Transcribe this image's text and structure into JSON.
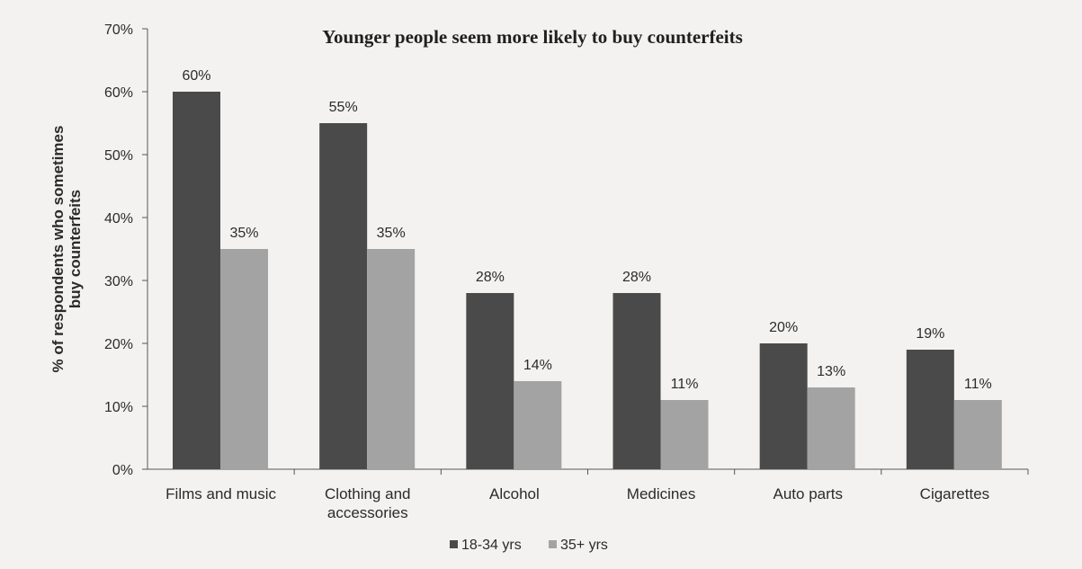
{
  "chart_data": {
    "type": "bar",
    "title": "Younger people seem more likely to buy counterfeits",
    "ylabel_lines": [
      "% of respondents who sometimes",
      "buy counterfeits"
    ],
    "xlabel": "",
    "ylim": [
      0,
      70
    ],
    "yticks": [
      0,
      10,
      20,
      30,
      40,
      50,
      60,
      70
    ],
    "ytick_labels": [
      "0%",
      "10%",
      "20%",
      "30%",
      "40%",
      "50%",
      "60%",
      "70%"
    ],
    "categories": [
      "Films and music",
      "Clothing and accessories",
      "Alcohol",
      "Medicines",
      "Auto parts",
      "Cigarettes"
    ],
    "category_lines": [
      [
        "Films and music"
      ],
      [
        "Clothing and",
        "accessories"
      ],
      [
        "Alcohol"
      ],
      [
        "Medicines"
      ],
      [
        "Auto parts"
      ],
      [
        "Cigarettes"
      ]
    ],
    "series": [
      {
        "name": "18-34 yrs",
        "color": "#4a4a4a",
        "values": [
          60,
          55,
          28,
          28,
          20,
          19
        ],
        "labels": [
          "60%",
          "55%",
          "28%",
          "28%",
          "20%",
          "19%"
        ]
      },
      {
        "name": "35+ yrs",
        "color": "#a3a3a3",
        "values": [
          35,
          35,
          14,
          11,
          13,
          11
        ],
        "labels": [
          "35%",
          "35%",
          "14%",
          "11%",
          "13%",
          "11%"
        ]
      }
    ],
    "grid": false,
    "legend_position": "bottom-center"
  }
}
